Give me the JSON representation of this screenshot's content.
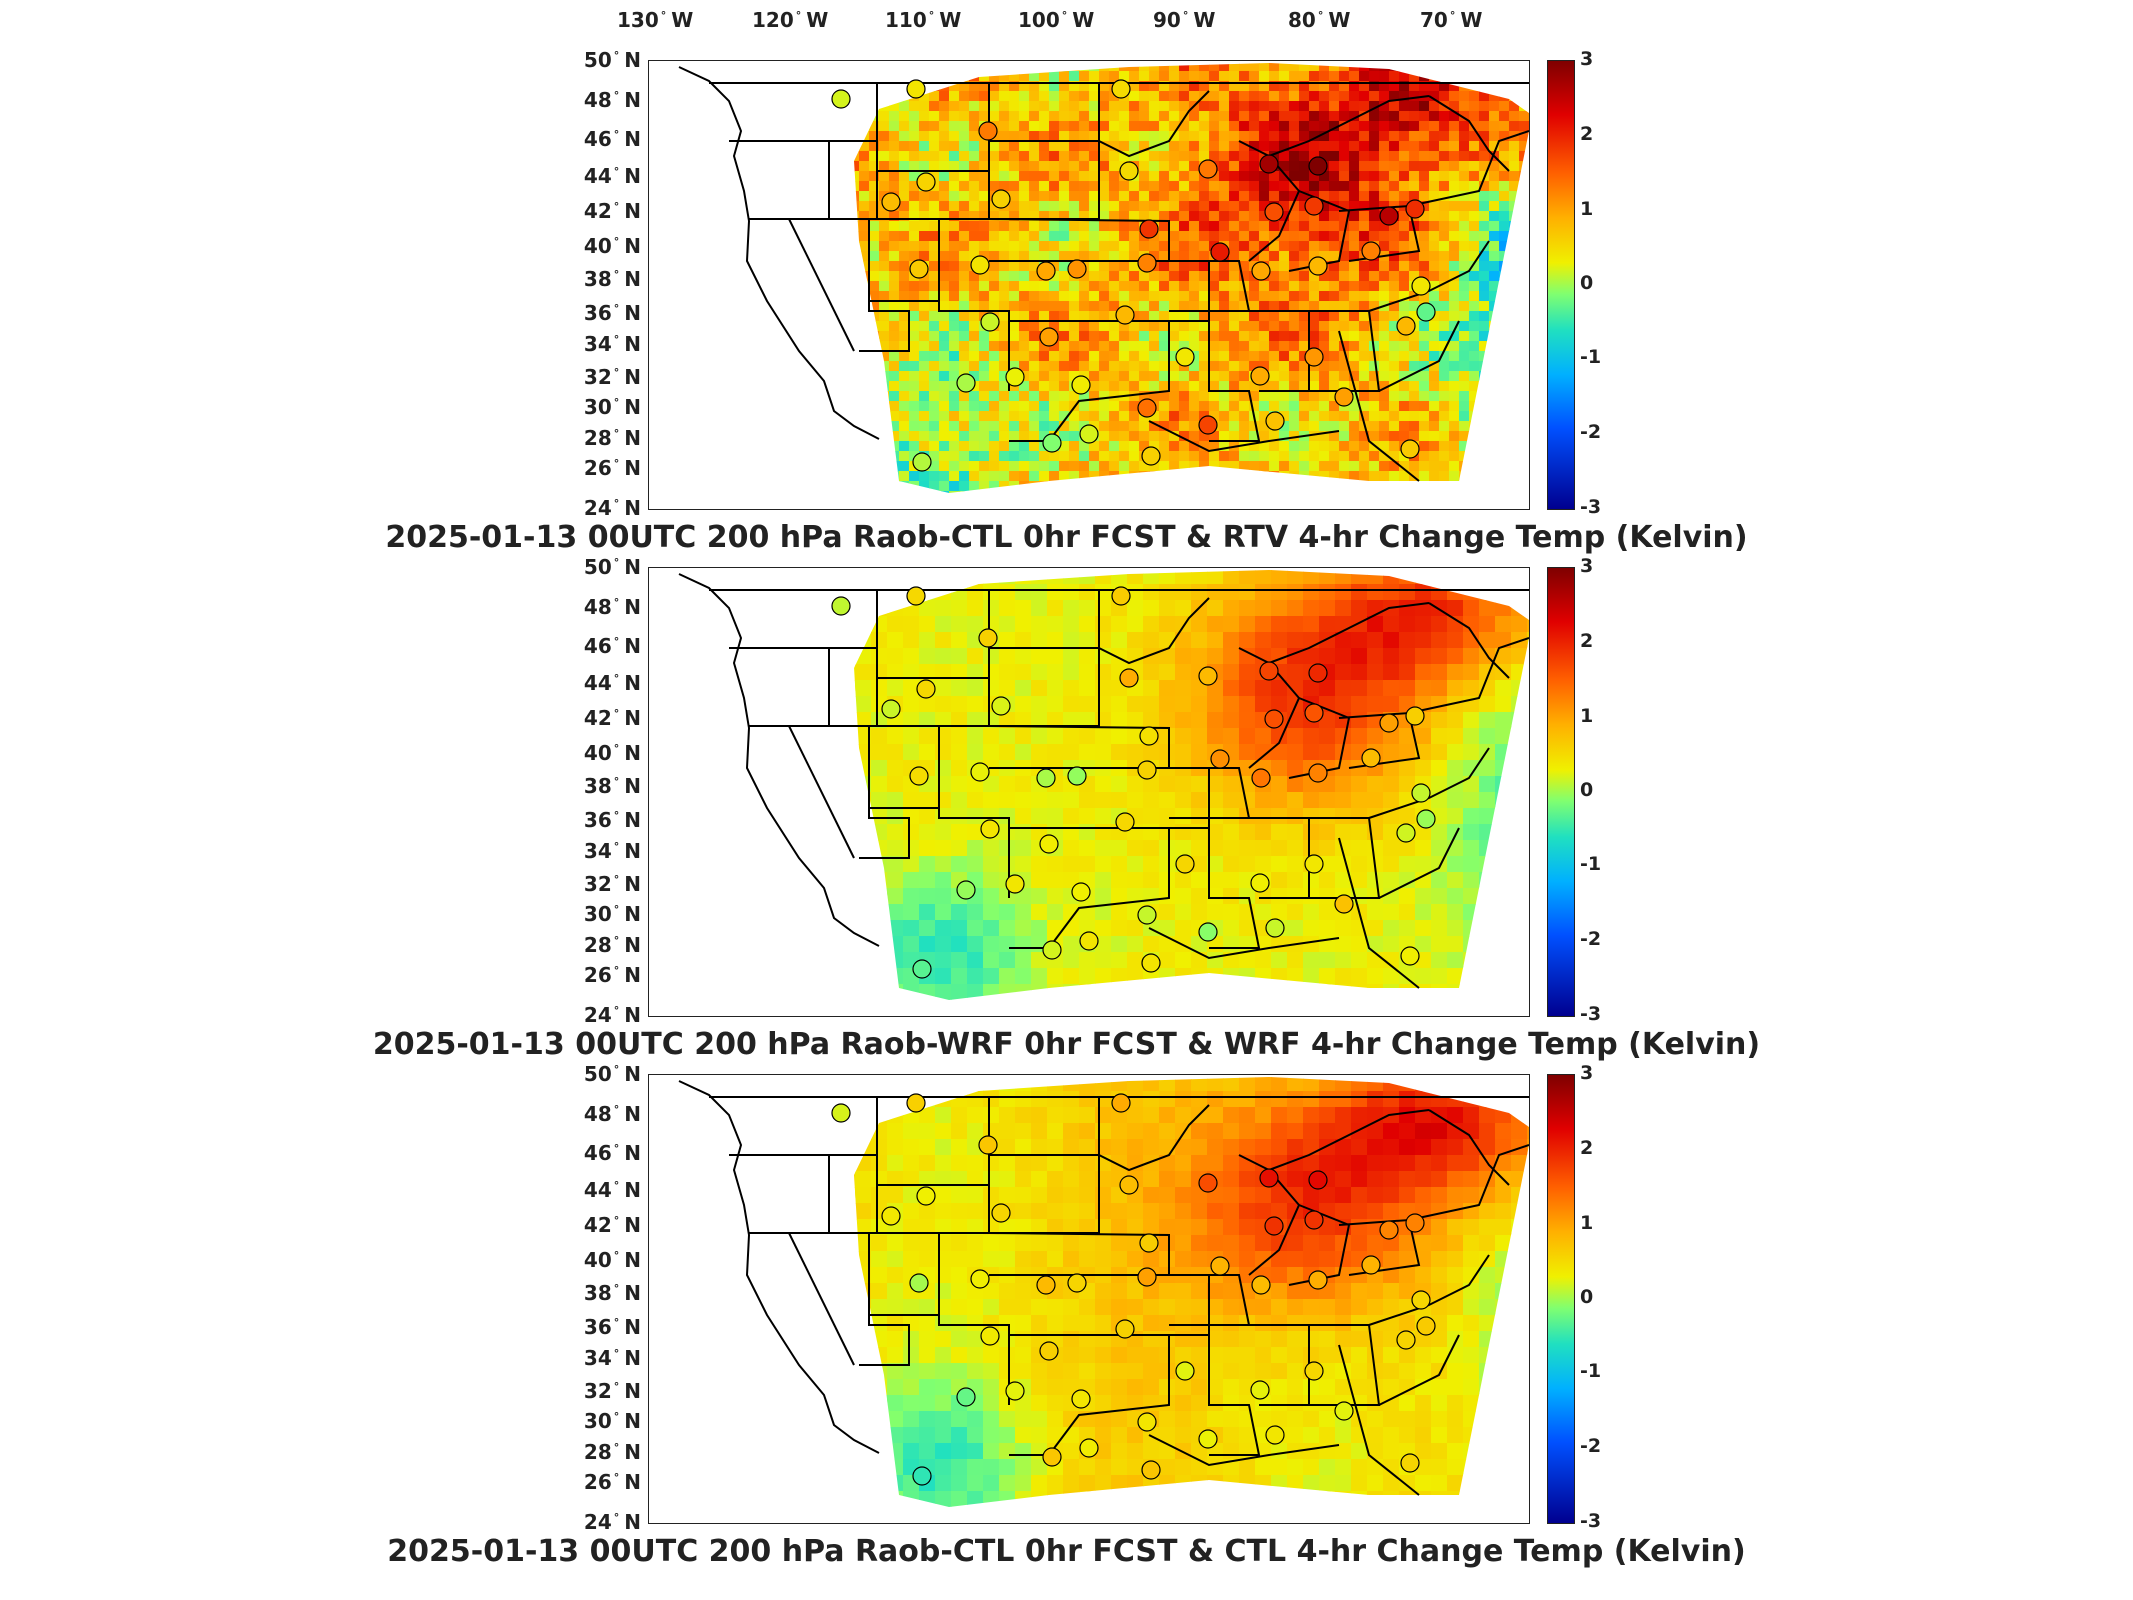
{
  "lon_labels": [
    {
      "value": "130",
      "hemi": "W"
    },
    {
      "value": "120",
      "hemi": "W"
    },
    {
      "value": "110",
      "hemi": "W"
    },
    {
      "value": "100",
      "hemi": "W"
    },
    {
      "value": "90",
      "hemi": "W"
    },
    {
      "value": "80",
      "hemi": "W"
    },
    {
      "value": "70",
      "hemi": "W"
    }
  ],
  "lat_labels": [
    {
      "value": "50",
      "hemi": "N"
    },
    {
      "value": "48",
      "hemi": "N"
    },
    {
      "value": "46",
      "hemi": "N"
    },
    {
      "value": "44",
      "hemi": "N"
    },
    {
      "value": "42",
      "hemi": "N"
    },
    {
      "value": "40",
      "hemi": "N"
    },
    {
      "value": "38",
      "hemi": "N"
    },
    {
      "value": "36",
      "hemi": "N"
    },
    {
      "value": "34",
      "hemi": "N"
    },
    {
      "value": "32",
      "hemi": "N"
    },
    {
      "value": "30",
      "hemi": "N"
    },
    {
      "value": "28",
      "hemi": "N"
    },
    {
      "value": "26",
      "hemi": "N"
    },
    {
      "value": "24",
      "hemi": "N"
    }
  ],
  "colorbar_ticks": [
    "3",
    "2",
    "1",
    "0",
    "-1",
    "-2",
    "-3"
  ],
  "colorbar_range": [
    -3,
    3
  ],
  "colormap": "jet",
  "panels": [
    {
      "title": "2025-01-13 00UTC 200 hPa Raob-CTL 0hr FCST & RTV 4-hr Change Temp (Kelvin)",
      "field": "rtv_noisy"
    },
    {
      "title": "2025-01-13 00UTC 200 hPa Raob-WRF 0hr FCST & WRF 4-hr Change Temp (Kelvin)",
      "field": "wrf_smooth"
    },
    {
      "title": "2025-01-13 00UTC 200 hPa Raob-CTL 0hr FCST & CTL 4-hr Change Temp (Kelvin)",
      "field": "ctl_smooth"
    }
  ],
  "colors": {
    "background": "#ffffff",
    "coastline": "#000000",
    "text": "#222222"
  }
}
